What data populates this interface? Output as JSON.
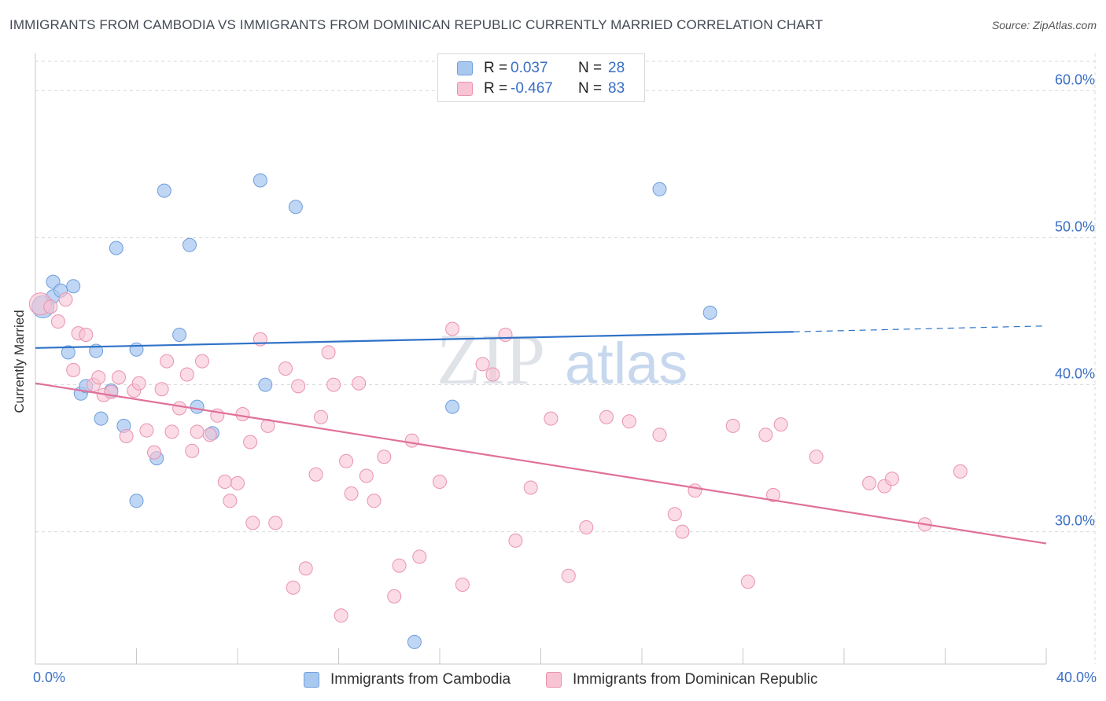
{
  "title": "IMMIGRANTS FROM CAMBODIA VS IMMIGRANTS FROM DOMINICAN REPUBLIC CURRENTLY MARRIED CORRELATION CHART",
  "source": "Source: ZipAtlas.com",
  "watermark": {
    "zip": "ZIP",
    "atlas": "atlas"
  },
  "legend_top": {
    "rows": [
      {
        "r_label": "R =",
        "r_value": "0.037",
        "n_label": "N =",
        "n_value": "28",
        "color": "#a9c8f0",
        "border": "#6f9fdc"
      },
      {
        "r_label": "R =",
        "r_value": "-0.467",
        "n_label": "N =",
        "n_value": "83",
        "color": "#f8c3d3",
        "border": "#e993b0"
      }
    ]
  },
  "legend_bottom": [
    {
      "label": "Immigrants from Cambodia",
      "color": "#a9c8f0",
      "border": "#6f9fdc"
    },
    {
      "label": "Immigrants from Dominican Republic",
      "color": "#f8c3d3",
      "border": "#e993b0"
    }
  ],
  "x_axis": {
    "min_label": "0.0%",
    "max_label": "40.0%"
  },
  "chart_data": {
    "type": "scatter",
    "title": "IMMIGRANTS FROM CAMBODIA VS IMMIGRANTS FROM DOMINICAN REPUBLIC CURRENTLY MARRIED CORRELATION CHART",
    "xlabel": "",
    "ylabel": "Currently Married",
    "xlim": [
      0,
      40
    ],
    "ylim": [
      21,
      62
    ],
    "y_ticks": [
      {
        "value": 30,
        "label": "30.0%"
      },
      {
        "value": 40,
        "label": "40.0%"
      },
      {
        "value": 50,
        "label": "50.0%"
      },
      {
        "value": 60,
        "label": "60.0%"
      }
    ],
    "x_ticks": [
      {
        "value": 0,
        "label": "0.0%"
      },
      {
        "value": 40,
        "label": "40.0%"
      }
    ],
    "grid": true,
    "legend_position": "top-center",
    "series": [
      {
        "name": "Immigrants from Cambodia",
        "color": "#a9c8f0",
        "stroke": "#6f9fdc",
        "line_color": "#2f72c8",
        "trend": {
          "x_start": 0,
          "y_start": 42.5,
          "x_solid_end": 30,
          "y_solid_end": 43.6,
          "x_end": 40,
          "y_end": 44.0
        },
        "points": [
          [
            0.3,
            45.3
          ],
          [
            0.7,
            46.0
          ],
          [
            0.7,
            47.0
          ],
          [
            1.0,
            46.4
          ],
          [
            1.5,
            46.7
          ],
          [
            1.3,
            42.2
          ],
          [
            2.4,
            42.3
          ],
          [
            1.8,
            39.4
          ],
          [
            2.0,
            39.9
          ],
          [
            3.0,
            39.6
          ],
          [
            2.6,
            37.7
          ],
          [
            3.5,
            37.2
          ],
          [
            4.0,
            42.4
          ],
          [
            4.8,
            35.0
          ],
          [
            4.0,
            32.1
          ],
          [
            3.2,
            49.3
          ],
          [
            5.1,
            53.2
          ],
          [
            6.1,
            49.5
          ],
          [
            5.7,
            43.4
          ],
          [
            6.4,
            38.5
          ],
          [
            7.0,
            36.7
          ],
          [
            8.9,
            53.9
          ],
          [
            9.1,
            40.0
          ],
          [
            10.3,
            52.1
          ],
          [
            16.5,
            38.5
          ],
          [
            15.0,
            22.5
          ],
          [
            24.7,
            53.3
          ],
          [
            26.7,
            44.9
          ]
        ]
      },
      {
        "name": "Immigrants from Dominican Republic",
        "color": "#f8c3d3",
        "stroke": "#e993b0",
        "line_color": "#e0709a",
        "trend": {
          "x_start": 0,
          "y_start": 40.1,
          "x_end": 40,
          "y_end": 29.2
        },
        "points": [
          [
            0.2,
            45.5
          ],
          [
            0.6,
            45.3
          ],
          [
            0.9,
            44.3
          ],
          [
            1.2,
            45.8
          ],
          [
            1.5,
            41.0
          ],
          [
            1.7,
            43.5
          ],
          [
            2.0,
            43.4
          ],
          [
            2.3,
            40.0
          ],
          [
            2.5,
            40.5
          ],
          [
            2.7,
            39.3
          ],
          [
            3.0,
            39.5
          ],
          [
            3.3,
            40.5
          ],
          [
            3.6,
            36.5
          ],
          [
            3.9,
            39.6
          ],
          [
            4.1,
            40.1
          ],
          [
            4.4,
            36.9
          ],
          [
            4.7,
            35.4
          ],
          [
            5.0,
            39.7
          ],
          [
            5.2,
            41.6
          ],
          [
            5.4,
            36.8
          ],
          [
            5.7,
            38.4
          ],
          [
            6.0,
            40.7
          ],
          [
            6.2,
            35.5
          ],
          [
            6.4,
            36.8
          ],
          [
            6.6,
            41.6
          ],
          [
            6.9,
            36.6
          ],
          [
            7.2,
            37.9
          ],
          [
            7.5,
            33.4
          ],
          [
            7.7,
            32.1
          ],
          [
            8.0,
            33.3
          ],
          [
            8.2,
            38.0
          ],
          [
            8.5,
            36.1
          ],
          [
            8.9,
            43.1
          ],
          [
            9.2,
            37.2
          ],
          [
            9.5,
            30.6
          ],
          [
            9.9,
            41.1
          ],
          [
            10.2,
            26.2
          ],
          [
            10.4,
            39.9
          ],
          [
            10.7,
            27.5
          ],
          [
            11.1,
            33.9
          ],
          [
            11.3,
            37.8
          ],
          [
            11.6,
            42.2
          ],
          [
            11.8,
            40.0
          ],
          [
            12.1,
            24.3
          ],
          [
            12.3,
            34.8
          ],
          [
            12.5,
            32.6
          ],
          [
            12.8,
            40.1
          ],
          [
            13.1,
            33.8
          ],
          [
            13.4,
            32.1
          ],
          [
            13.8,
            35.1
          ],
          [
            14.2,
            25.6
          ],
          [
            14.4,
            27.7
          ],
          [
            14.9,
            36.2
          ],
          [
            15.2,
            28.3
          ],
          [
            16.0,
            33.4
          ],
          [
            16.5,
            43.8
          ],
          [
            16.9,
            26.4
          ],
          [
            17.7,
            41.4
          ],
          [
            18.1,
            40.7
          ],
          [
            18.6,
            43.4
          ],
          [
            19.0,
            29.4
          ],
          [
            19.6,
            33.0
          ],
          [
            20.4,
            37.7
          ],
          [
            21.1,
            27.0
          ],
          [
            21.8,
            30.3
          ],
          [
            22.6,
            37.8
          ],
          [
            24.7,
            36.6
          ],
          [
            25.3,
            31.2
          ],
          [
            25.6,
            30.0
          ],
          [
            26.1,
            32.8
          ],
          [
            27.6,
            37.2
          ],
          [
            28.2,
            26.6
          ],
          [
            28.9,
            36.6
          ],
          [
            29.2,
            32.5
          ],
          [
            29.5,
            37.3
          ],
          [
            30.9,
            35.1
          ],
          [
            33.0,
            33.3
          ],
          [
            33.6,
            33.1
          ],
          [
            33.9,
            33.6
          ],
          [
            35.2,
            30.5
          ],
          [
            36.6,
            34.1
          ],
          [
            8.6,
            30.6
          ],
          [
            23.5,
            37.5
          ]
        ]
      }
    ]
  }
}
